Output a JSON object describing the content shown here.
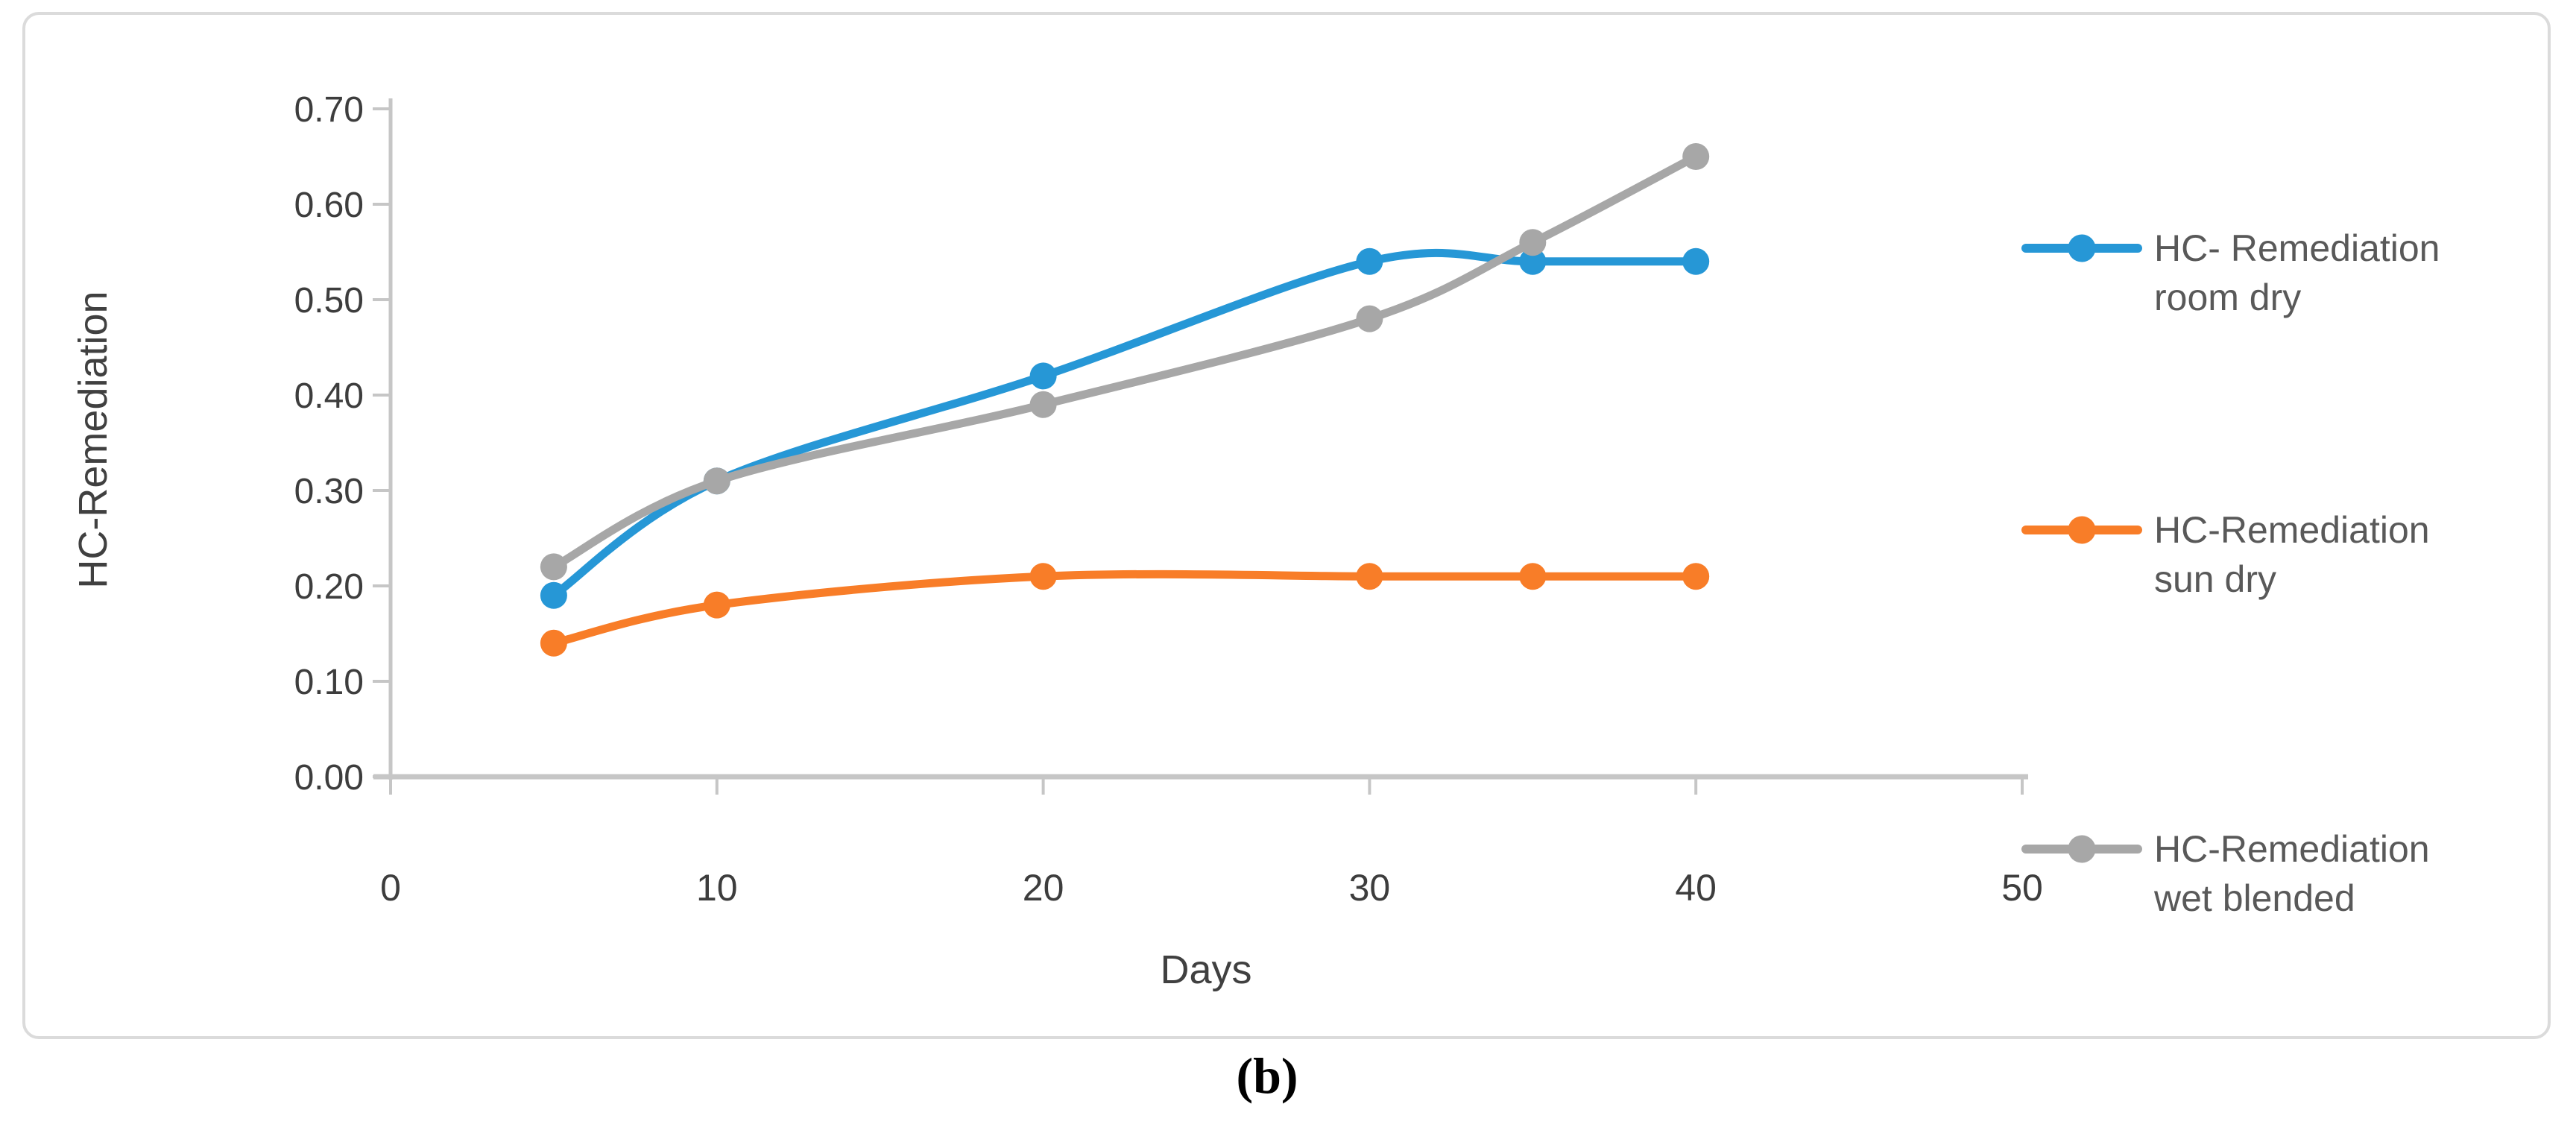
{
  "figure": {
    "caption": "(b)"
  },
  "chart_data": {
    "type": "line",
    "title": "",
    "xlabel": "Days",
    "ylabel": "HC-Remediation",
    "xlim": [
      0,
      50
    ],
    "ylim": [
      0,
      0.7
    ],
    "x_ticks": [
      0,
      10,
      20,
      30,
      40,
      50
    ],
    "y_tick_labels": [
      "0.00",
      "0.10",
      "0.20",
      "0.30",
      "0.40",
      "0.50",
      "0.60",
      "0.70"
    ],
    "grid": false,
    "legend_position": "right",
    "smooth_lines": true,
    "x": [
      5,
      10,
      20,
      30,
      35,
      40
    ],
    "series": [
      {
        "name": "HC- Remediation room dry",
        "label_lines": [
          "HC- Remediation",
          "room dry"
        ],
        "color": "#2697D6",
        "values": [
          0.19,
          0.31,
          0.42,
          0.54,
          0.54,
          0.54
        ]
      },
      {
        "name": "HC-Remediation sun dry",
        "label_lines": [
          "HC-Remediation",
          "sun dry"
        ],
        "color": "#F87D28",
        "values": [
          0.14,
          0.18,
          0.21,
          0.21,
          0.21,
          0.21
        ]
      },
      {
        "name": "HC-Remediation wet blended",
        "label_lines": [
          "HC-Remediation",
          "wet blended"
        ],
        "color": "#A7A7A7",
        "values": [
          0.22,
          0.31,
          0.39,
          0.48,
          0.56,
          0.65
        ]
      }
    ],
    "colors": {
      "axis_line": "#C6C6C6",
      "tick_label": "#3D3D3D",
      "axis_title": "#404040",
      "legend_text": "#595959",
      "frame_border": "#DBDBDB",
      "background": "#FFFFFF"
    }
  }
}
